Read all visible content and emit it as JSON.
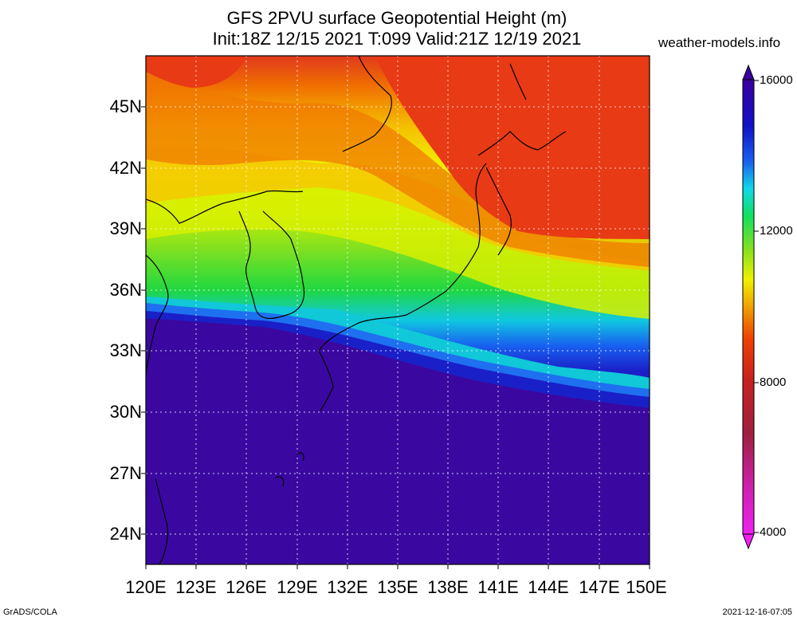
{
  "title": {
    "line1": "GFS 2PVU surface Geopotential Height (m)",
    "line2": "Init:18Z 12/15 2021 T:099 Valid:21Z 12/19 2021"
  },
  "credit": "weather-models.info",
  "footer": {
    "left": "GrADS/COLA",
    "right": "2021-12-16-07:05"
  },
  "map": {
    "lat_labels": [
      "45N",
      "42N",
      "39N",
      "36N",
      "33N",
      "30N",
      "27N",
      "24N"
    ],
    "lon_labels": [
      "120E",
      "123E",
      "126E",
      "129E",
      "132E",
      "135E",
      "138E",
      "141E",
      "144E",
      "147E",
      "150E"
    ]
  },
  "colorbar": {
    "labels": [
      "16000",
      "12000",
      "8000",
      "4000"
    ],
    "colors": [
      "#3a00a0",
      "#1010c8",
      "#1840e0",
      "#1e78f0",
      "#10c8e8",
      "#10d8a0",
      "#10e060",
      "#20e020",
      "#80e020",
      "#c0f000",
      "#f0f000",
      "#f0d000",
      "#f0a000",
      "#f07800",
      "#f04000",
      "#e02020",
      "#c82020",
      "#a02040",
      "#c02080",
      "#e020c0",
      "#f020f0"
    ]
  }
}
